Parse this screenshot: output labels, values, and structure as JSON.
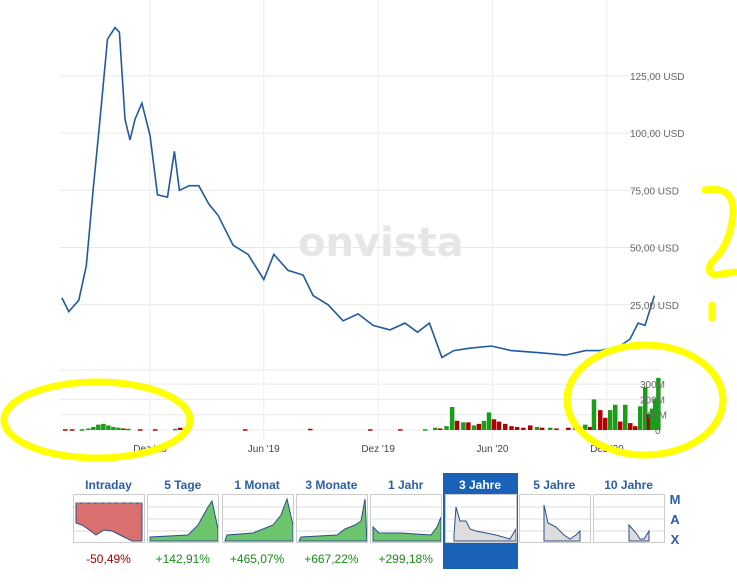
{
  "watermark": "onvista",
  "colors": {
    "line": "#1f5a9e",
    "up": "#1a9e1a",
    "down": "#b30000",
    "selected_tab": "#1a62b8",
    "annotation": "#ffff00",
    "negative": "#a00000",
    "positive": "#1a8a1a"
  },
  "chart_data": {
    "type": "line",
    "price": {
      "unit": "USD",
      "y_ticks": [
        "25,00 USD",
        "50,00 USD",
        "75,00 USD",
        "100,00 USD",
        "125,00 USD"
      ],
      "y_tick_values": [
        25,
        50,
        75,
        100,
        125
      ],
      "ylim": [
        0,
        150
      ],
      "points": [
        [
          "2018-07-13",
          28
        ],
        [
          "2018-07-24",
          22
        ],
        [
          "2018-08-09",
          27
        ],
        [
          "2018-08-21",
          42
        ],
        [
          "2018-09-01",
          75
        ],
        [
          "2018-09-12",
          106
        ],
        [
          "2018-09-24",
          141
        ],
        [
          "2018-10-06",
          146
        ],
        [
          "2018-10-13",
          144
        ],
        [
          "2018-10-22",
          106
        ],
        [
          "2018-10-30",
          97
        ],
        [
          "2018-11-07",
          106
        ],
        [
          "2018-11-18",
          113
        ],
        [
          "2018-12-01",
          99
        ],
        [
          "2018-12-13",
          73
        ],
        [
          "2018-12-29",
          72
        ],
        [
          "2019-01-09",
          92
        ],
        [
          "2019-01-17",
          75
        ],
        [
          "2019-02-02",
          77
        ],
        [
          "2019-02-17",
          77
        ],
        [
          "2019-03-05",
          69
        ],
        [
          "2019-03-20",
          64
        ],
        [
          "2019-04-13",
          51
        ],
        [
          "2019-05-07",
          47
        ],
        [
          "2019-06-01",
          36
        ],
        [
          "2019-06-17",
          47
        ],
        [
          "2019-07-10",
          40
        ],
        [
          "2019-08-03",
          38
        ],
        [
          "2019-08-19",
          29
        ],
        [
          "2019-09-12",
          25
        ],
        [
          "2019-10-06",
          18
        ],
        [
          "2019-10-30",
          21
        ],
        [
          "2019-11-23",
          16
        ],
        [
          "2019-12-20",
          14
        ],
        [
          "2020-01-13",
          17
        ],
        [
          "2020-02-02",
          13
        ],
        [
          "2020-02-21",
          17
        ],
        [
          "2020-03-12",
          2
        ],
        [
          "2020-03-31",
          5
        ],
        [
          "2020-04-24",
          6
        ],
        [
          "2020-05-30",
          7
        ],
        [
          "2020-07-01",
          5
        ],
        [
          "2020-08-17",
          4
        ],
        [
          "2020-09-26",
          3
        ],
        [
          "2020-10-28",
          5
        ],
        [
          "2020-11-20",
          5
        ],
        [
          "2020-12-22",
          7
        ],
        [
          "2021-01-07",
          10
        ],
        [
          "2021-01-20",
          17
        ],
        [
          "2021-01-31",
          16
        ],
        [
          "2021-02-15",
          29
        ]
      ]
    },
    "volume": {
      "y_ticks": [
        "0",
        "100M",
        "200M",
        "300M"
      ],
      "y_tick_values": [
        0,
        100,
        200,
        300
      ],
      "ylim": [
        0,
        350
      ],
      "bars": [
        [
          "2018-07-18",
          5,
          "down"
        ],
        [
          "2018-07-29",
          5,
          "down"
        ],
        [
          "2018-08-14",
          5,
          "up"
        ],
        [
          "2018-08-24",
          10,
          "up"
        ],
        [
          "2018-09-01",
          20,
          "up"
        ],
        [
          "2018-09-09",
          35,
          "up"
        ],
        [
          "2018-09-17",
          40,
          "up"
        ],
        [
          "2018-09-25",
          30,
          "up"
        ],
        [
          "2018-10-03",
          20,
          "up"
        ],
        [
          "2018-10-11",
          15,
          "up"
        ],
        [
          "2018-10-19",
          10,
          "down"
        ],
        [
          "2018-10-27",
          8,
          "up"
        ],
        [
          "2018-11-15",
          5,
          "down"
        ],
        [
          "2018-12-09",
          5,
          "down"
        ],
        [
          "2019-01-10",
          8,
          "up"
        ],
        [
          "2019-01-18",
          15,
          "down"
        ],
        [
          "2019-05-02",
          5,
          "down"
        ],
        [
          "2019-08-14",
          8,
          "down"
        ],
        [
          "2019-11-18",
          5,
          "down"
        ],
        [
          "2020-01-05",
          5,
          "down"
        ],
        [
          "2020-02-14",
          5,
          "up"
        ],
        [
          "2020-03-01",
          15,
          "up"
        ],
        [
          "2020-03-09",
          10,
          "down"
        ],
        [
          "2020-03-19",
          25,
          "up"
        ],
        [
          "2020-03-28",
          150,
          "up"
        ],
        [
          "2020-04-05",
          60,
          "down"
        ],
        [
          "2020-04-15",
          50,
          "up"
        ],
        [
          "2020-04-23",
          50,
          "down"
        ],
        [
          "2020-05-02",
          30,
          "up"
        ],
        [
          "2020-05-10",
          40,
          "down"
        ],
        [
          "2020-05-18",
          60,
          "up"
        ],
        [
          "2020-05-26",
          115,
          "up"
        ],
        [
          "2020-06-03",
          70,
          "down"
        ],
        [
          "2020-06-11",
          55,
          "down"
        ],
        [
          "2020-06-21",
          40,
          "down"
        ],
        [
          "2020-07-01",
          25,
          "down"
        ],
        [
          "2020-07-10",
          20,
          "down"
        ],
        [
          "2020-07-20",
          15,
          "down"
        ],
        [
          "2020-07-31",
          30,
          "down"
        ],
        [
          "2020-08-11",
          20,
          "up"
        ],
        [
          "2020-08-19",
          15,
          "down"
        ],
        [
          "2020-09-01",
          15,
          "up"
        ],
        [
          "2020-09-11",
          10,
          "down"
        ],
        [
          "2020-09-30",
          15,
          "down"
        ],
        [
          "2020-10-11",
          40,
          "up"
        ],
        [
          "2020-10-19",
          15,
          "down"
        ],
        [
          "2020-10-27",
          35,
          "up"
        ],
        [
          "2020-11-04",
          20,
          "down"
        ],
        [
          "2020-11-10",
          200,
          "up"
        ],
        [
          "2020-11-20",
          130,
          "down"
        ],
        [
          "2020-11-28",
          80,
          "down"
        ],
        [
          "2020-12-06",
          130,
          "up"
        ],
        [
          "2020-12-14",
          165,
          "up"
        ],
        [
          "2020-12-22",
          55,
          "down"
        ],
        [
          "2020-12-30",
          165,
          "up"
        ],
        [
          "2021-01-07",
          45,
          "down"
        ],
        [
          "2021-01-15",
          25,
          "down"
        ],
        [
          "2021-01-23",
          155,
          "up"
        ],
        [
          "2021-01-31",
          280,
          "up"
        ],
        [
          "2021-02-06",
          105,
          "down"
        ],
        [
          "2021-02-11",
          140,
          "up"
        ],
        [
          "2021-02-16",
          205,
          "up"
        ],
        [
          "2021-02-21",
          340,
          "up"
        ]
      ]
    },
    "x_ticks": [
      [
        "2018-12-01",
        "Dez '18"
      ],
      [
        "2019-06-01",
        "Jun '19"
      ],
      [
        "2019-12-01",
        "Dez '19"
      ],
      [
        "2020-06-01",
        "Jun '20"
      ],
      [
        "2020-12-01",
        "Dez '20"
      ]
    ],
    "grid": true
  },
  "tabs": [
    {
      "label": "Intraday",
      "change": "-50,49%",
      "sign": "negative"
    },
    {
      "label": "5 Tage",
      "change": "+142,91%",
      "sign": "positive"
    },
    {
      "label": "1 Monat",
      "change": "+465,07%",
      "sign": "positive"
    },
    {
      "label": "3 Monate",
      "change": "+667,22%",
      "sign": "positive"
    },
    {
      "label": "1 Jahr",
      "change": "+299,18%",
      "sign": "positive"
    },
    {
      "label": "3 Jahre",
      "change": "",
      "selected": true
    },
    {
      "label": "5 Jahre",
      "change": ""
    },
    {
      "label": "10 Jahre",
      "change": ""
    }
  ],
  "max_button": {
    "letters": [
      "M",
      "A",
      "X"
    ]
  }
}
